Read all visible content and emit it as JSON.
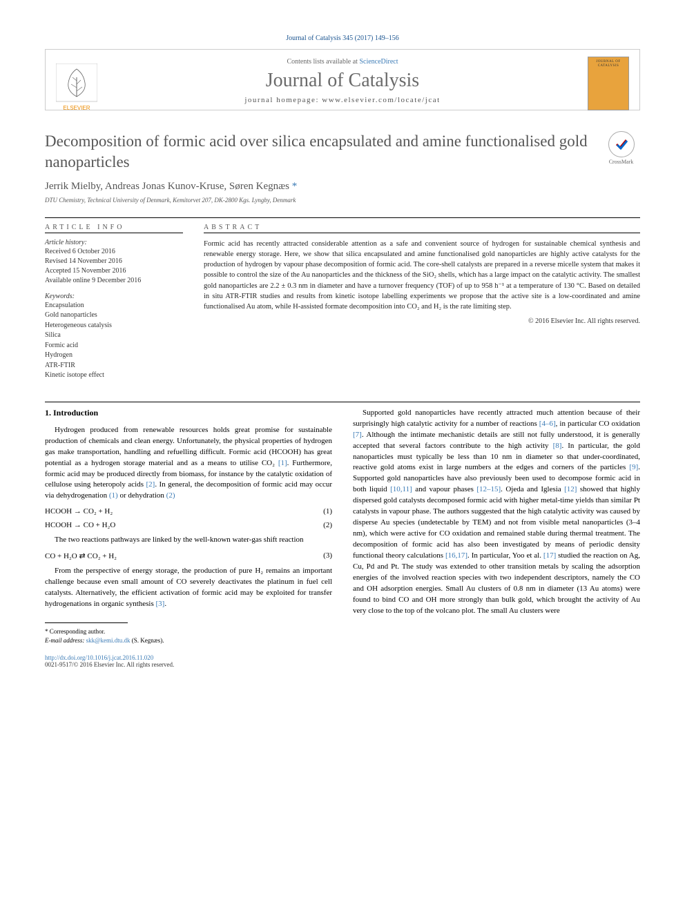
{
  "header": {
    "reference": "Journal of Catalysis 345 (2017) 149–156",
    "contents_prefix": "Contents lists available at ",
    "contents_link": "ScienceDirect",
    "journal_name": "Journal of Catalysis",
    "homepage_prefix": "journal homepage: ",
    "homepage_url": "www.elsevier.com/locate/jcat",
    "elsevier_label": "ELSEVIER",
    "cover_label": "JOURNAL OF CATALYSIS",
    "crossmark_label": "CrossMark"
  },
  "article": {
    "title": "Decomposition of formic acid over silica encapsulated and amine functionalised gold nanoparticles",
    "authors": "Jerrik Mielby, Andreas Jonas Kunov-Kruse, Søren Kegnæs",
    "corr_marker": " *",
    "affiliation": "DTU Chemistry, Technical University of Denmark, Kemitorvet 207, DK-2800 Kgs. Lyngby, Denmark"
  },
  "info": {
    "heading": "ARTICLE INFO",
    "history_label": "Article history:",
    "history": "Received 6 October 2016\nRevised 14 November 2016\nAccepted 15 November 2016\nAvailable online 9 December 2016",
    "keywords_label": "Keywords:",
    "keywords": "Encapsulation\nGold nanoparticles\nHeterogeneous catalysis\nSilica\nFormic acid\nHydrogen\nATR-FTIR\nKinetic isotope effect"
  },
  "abstract": {
    "heading": "ABSTRACT",
    "text": "Formic acid has recently attracted considerable attention as a safe and convenient source of hydrogen for sustainable chemical synthesis and renewable energy storage. Here, we show that silica encapsulated and amine functionalised gold nanoparticles are highly active catalysts for the production of hydrogen by vapour phase decomposition of formic acid. The core-shell catalysts are prepared in a reverse micelle system that makes it possible to control the size of the Au nanoparticles and the thickness of the SiO₂ shells, which has a large impact on the catalytic activity. The smallest gold nanoparticles are 2.2 ± 0.3 nm in diameter and have a turnover frequency (TOF) of up to 958 h⁻¹ at a temperature of 130 °C. Based on detailed in situ ATR-FTIR studies and results from kinetic isotope labelling experiments we propose that the active site is a low-coordinated and amine functionalised Au atom, while H-assisted formate decomposition into CO₂ and H₂ is the rate limiting step.",
    "copyright": "© 2016 Elsevier Inc. All rights reserved."
  },
  "body": {
    "section1_heading": "1. Introduction",
    "p1": "Hydrogen produced from renewable resources holds great promise for sustainable production of chemicals and clean energy. Unfortunately, the physical properties of hydrogen gas make transportation, handling and refuelling difficult. Formic acid (HCOOH) has great potential as a hydrogen storage material and as a means to utilise CO₂ ",
    "p1_ref": "[1]",
    "p1b": ". Furthermore, formic acid may be produced directly from biomass, for instance by the catalytic oxidation of cellulose using heteropoly acids ",
    "p1b_ref": "[2]",
    "p1c": ". In general, the decomposition of formic acid may occur via dehydrogenation ",
    "p1c_ref": "(1)",
    "p1d": " or dehydration ",
    "p1d_ref": "(2)",
    "eq1": "HCOOH → CO₂ + H₂",
    "eq1_num": "(1)",
    "eq2": "HCOOH → CO + H₂O",
    "eq2_num": "(2)",
    "p2": "The two reactions pathways are linked by the well-known water-gas shift reaction",
    "eq3": "CO + H₂O ⇄ CO₂ + H₂",
    "eq3_num": "(3)",
    "p3": "From the perspective of energy storage, the production of pure H₂ remains an important challenge because even small amount of CO severely deactivates the platinum in fuel cell catalysts. Alternatively, the efficient activation of formic acid may be exploited for transfer hydrogenations in organic synthesis ",
    "p3_ref": "[3]",
    "p3b": ".",
    "col2_p1a": "Supported gold nanoparticles have recently attracted much attention because of their surprisingly high catalytic activity for a number of reactions ",
    "col2_r1": "[4–6]",
    "col2_p1b": ", in particular CO oxidation ",
    "col2_r2": "[7]",
    "col2_p1c": ". Although the intimate mechanistic details are still not fully understood, it is generally accepted that several factors contribute to the high activity ",
    "col2_r3": "[8]",
    "col2_p1d": ". In particular, the gold nanoparticles must typically be less than 10 nm in diameter so that under-coordinated, reactive gold atoms exist in large numbers at the edges and corners of the particles ",
    "col2_r4": "[9]",
    "col2_p1e": ". Supported gold nanoparticles have also previously been used to decompose formic acid in both liquid ",
    "col2_r5": "[10,11]",
    "col2_p1f": " and vapour phases ",
    "col2_r6": "[12–15]",
    "col2_p1g": ". Ojeda and Iglesia ",
    "col2_r7": "[12]",
    "col2_p1h": " showed that highly dispersed gold catalysts decomposed formic acid with higher metal-time yields than similar Pt catalysts in vapour phase. The authors suggested that the high catalytic activity was caused by disperse Au species (undetectable by TEM) and not from visible metal nanoparticles (3–4 nm), which were active for CO oxidation and remained stable during thermal treatment. The decomposition of formic acid has also been investigated by means of periodic density functional theory calculations ",
    "col2_r8": "[16,17]",
    "col2_p1i": ". In particular, Yoo et al. ",
    "col2_r9": "[17]",
    "col2_p1j": " studied the reaction on Ag, Cu, Pd and Pt. The study was extended to other transition metals by scaling the adsorption energies of the involved reaction species with two independent descriptors, namely the CO and OH adsorption energies. Small Au clusters of 0.8 nm in diameter (13 Au atoms) were found to bind CO and OH more strongly than bulk gold, which brought the activity of Au very close to the top of the volcano plot. The small Au clusters were"
  },
  "footer": {
    "corr_label": "* Corresponding author.",
    "email_label": "E-mail address: ",
    "email": "skk@kemi.dtu.dk",
    "email_suffix": " (S. Kegnæs).",
    "doi": "http://dx.doi.org/10.1016/j.jcat.2016.11.020",
    "issn": "0021-9517/© 2016 Elsevier Inc. All rights reserved."
  },
  "colors": {
    "link": "#3a7ab5",
    "elsevier_orange": "#ed8b00",
    "cover_bg": "#e8a33d"
  }
}
